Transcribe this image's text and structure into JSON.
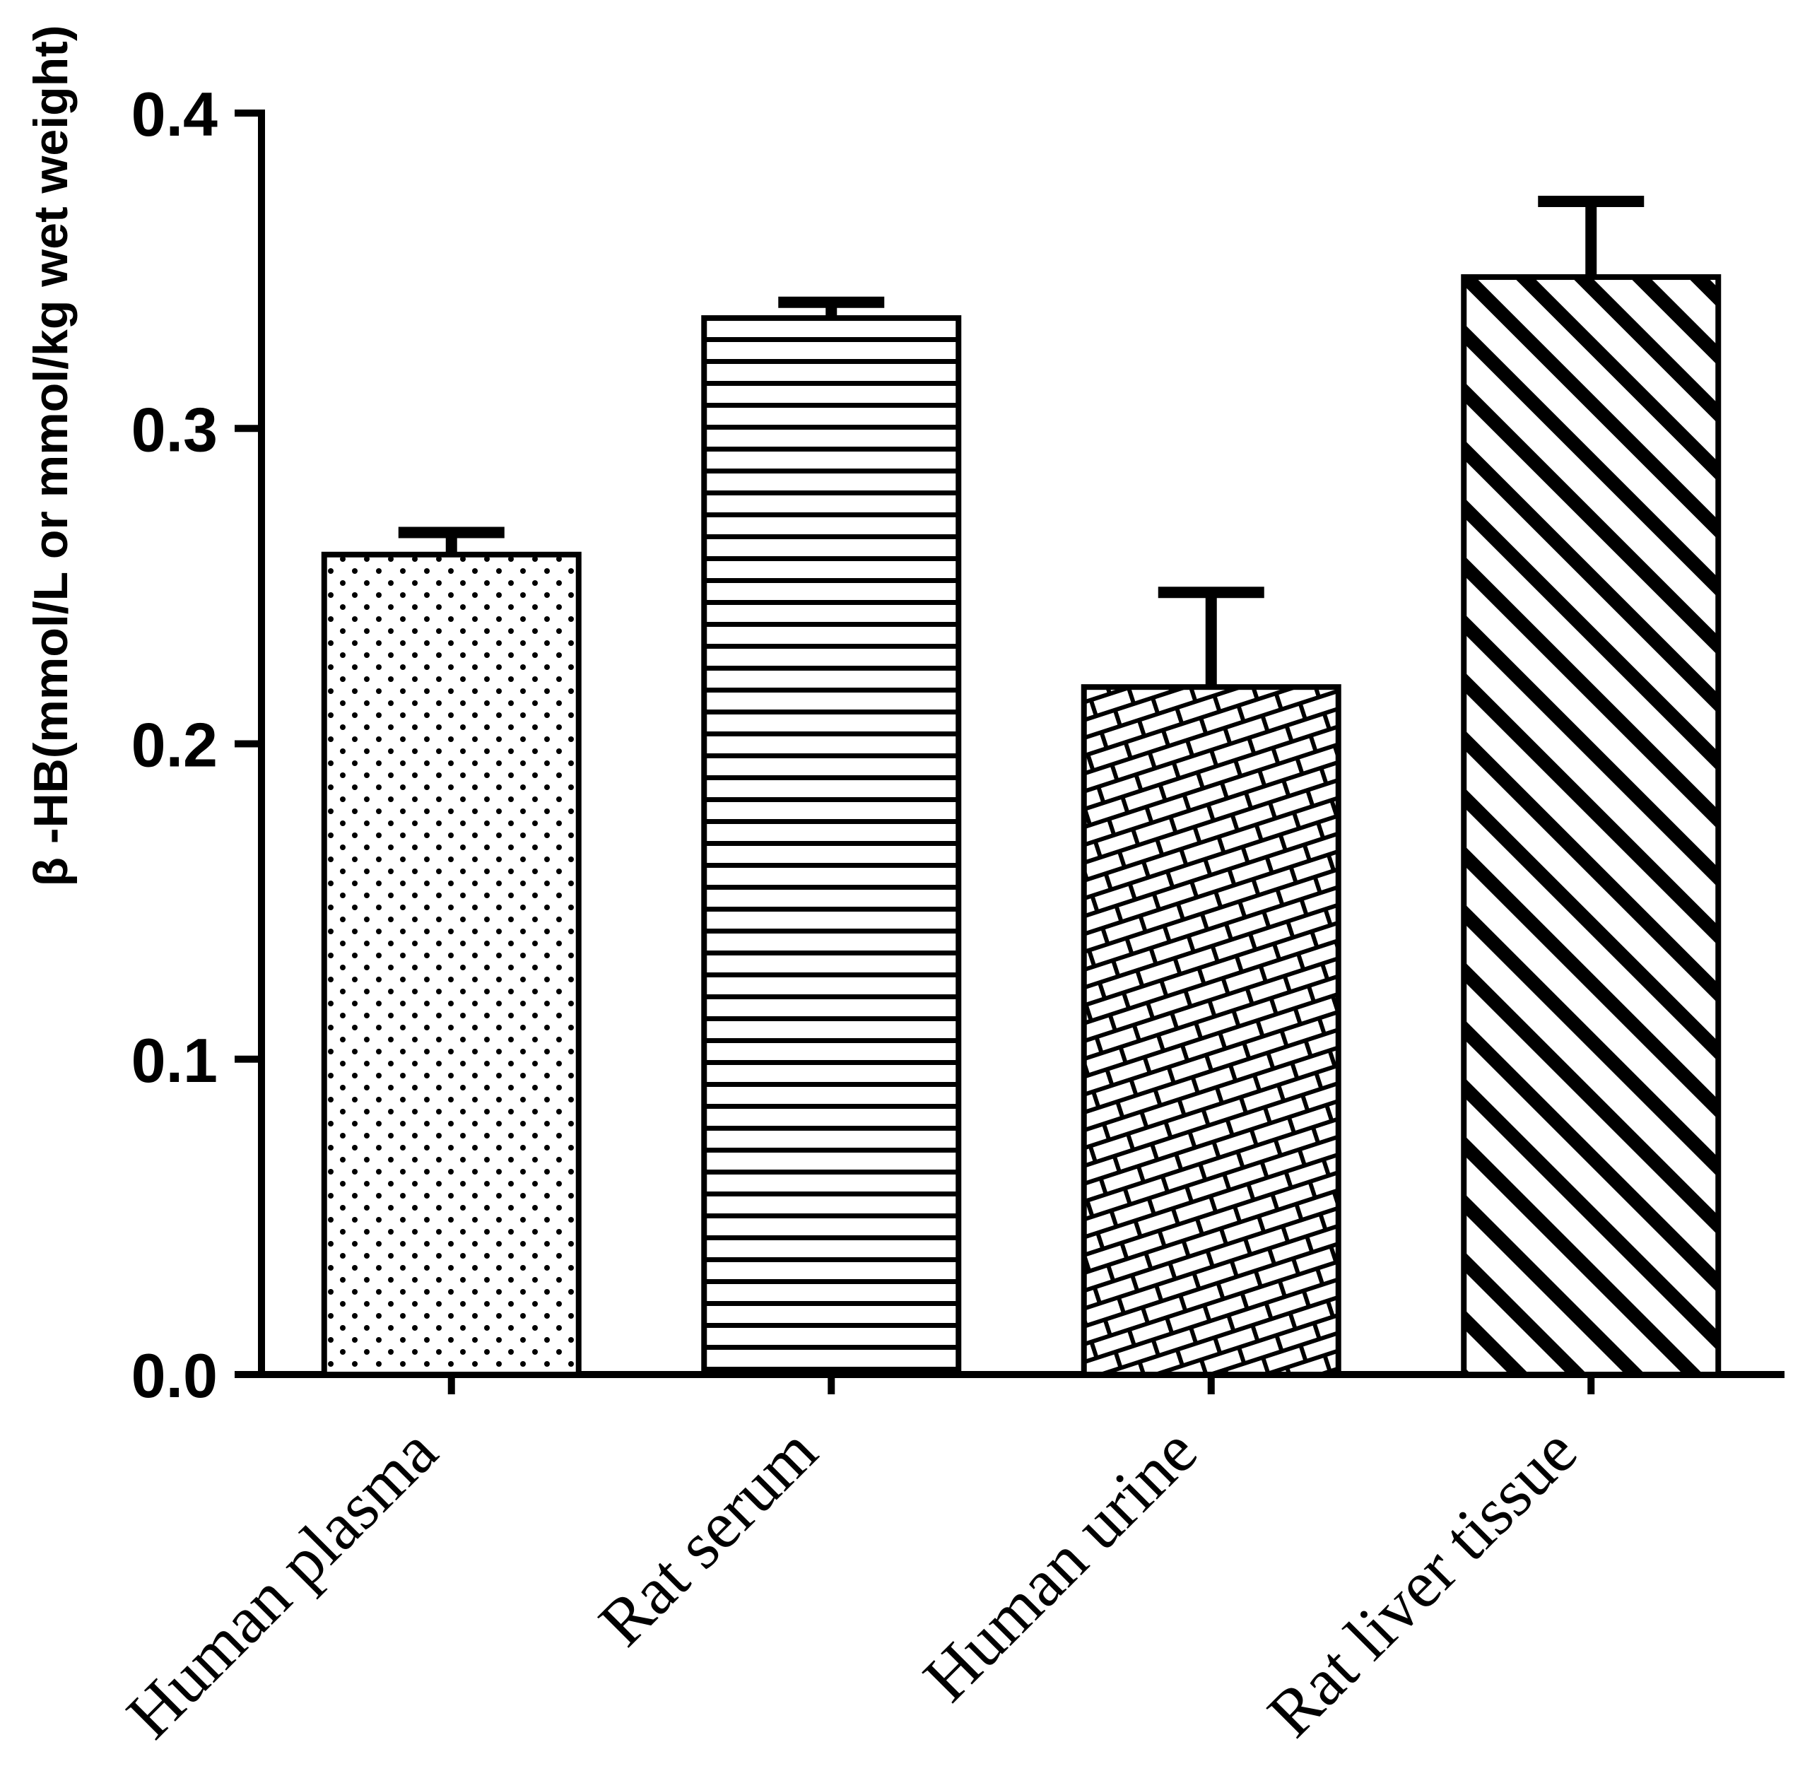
{
  "chart_data": {
    "type": "bar",
    "title": "",
    "xlabel": "",
    "ylabel": "β -HB(mmol/L or mmol/kg wet weight)",
    "categories": [
      "Human plasma",
      "Rat serum",
      "Human urine",
      "Rat liver tissue"
    ],
    "values": [
      0.26,
      0.335,
      0.218,
      0.348
    ],
    "errors": [
      0.007,
      0.005,
      0.03,
      0.024
    ],
    "error_direction": "up",
    "patterns": [
      "dots",
      "hlines",
      "bricks",
      "diagonal"
    ],
    "bar_fill_background": "#ffffff",
    "pattern_color": "#000000",
    "bar_outline_color": "#000000",
    "axis_color": "#000000",
    "background": "#ffffff",
    "ylim": [
      0.0,
      0.4
    ],
    "yticks": [
      0.0,
      0.1,
      0.2,
      0.3,
      0.4
    ],
    "ytick_labels": [
      "0.0",
      "0.1",
      "0.2",
      "0.3",
      "0.4"
    ],
    "grid": false,
    "legend": "none",
    "x_label_rotation_deg": -45
  }
}
